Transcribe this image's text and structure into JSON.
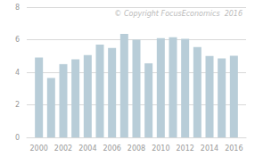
{
  "chart_data": {
    "type": "bar",
    "x": [
      2000,
      2001,
      2002,
      2003,
      2004,
      2005,
      2006,
      2007,
      2008,
      2009,
      2010,
      2011,
      2012,
      2013,
      2014,
      2015,
      2016
    ],
    "values": [
      4.9,
      3.65,
      4.5,
      4.8,
      5.05,
      5.7,
      5.5,
      6.35,
      6.0,
      4.55,
      6.1,
      6.15,
      6.05,
      5.55,
      5.0,
      4.85,
      5.02
    ],
    "color": "#b8cdd8",
    "xlim": [
      1999,
      2017
    ],
    "xticks": [
      2000,
      2002,
      2004,
      2006,
      2008,
      2010,
      2012,
      2014,
      2016
    ],
    "ylim": [
      0,
      8
    ],
    "yticks": [
      0,
      2,
      4,
      6,
      8
    ],
    "grid": true,
    "annotation": "© Copyright FocusEconomics  2016"
  }
}
